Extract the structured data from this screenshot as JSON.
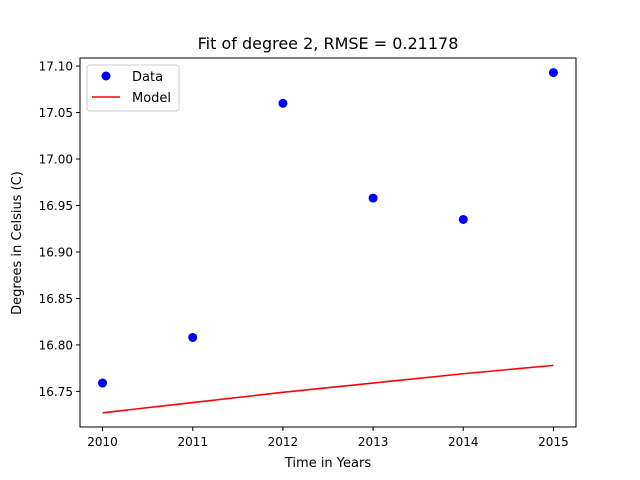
{
  "chart_data": {
    "type": "scatter",
    "title": "Fit of degree 2, RMSE = 0.21178",
    "xlabel": "Time in Years",
    "ylabel": "Degrees in Celsius (C)",
    "xlim": [
      2009.75,
      2015.25
    ],
    "ylim": [
      16.7117,
      17.1087
    ],
    "x_ticks": [
      2010,
      2011,
      2012,
      2013,
      2014,
      2015
    ],
    "x_tick_labels": [
      "2010",
      "2011",
      "2012",
      "2013",
      "2014",
      "2015"
    ],
    "y_ticks": [
      16.75,
      16.8,
      16.85,
      16.9,
      16.95,
      17.0,
      17.05,
      17.1
    ],
    "y_tick_labels": [
      "16.75",
      "16.80",
      "16.85",
      "16.90",
      "16.95",
      "17.00",
      "17.05",
      "17.10"
    ],
    "grid": false,
    "legend_position": "top-left",
    "series": [
      {
        "name": "Data",
        "kind": "scatter",
        "color": "#0000ff",
        "x": [
          2010,
          2011,
          2012,
          2013,
          2014,
          2015
        ],
        "y": [
          16.759,
          16.808,
          17.06,
          16.958,
          16.935,
          17.093
        ]
      },
      {
        "name": "Model",
        "kind": "line",
        "color": "#ff0000",
        "x": [
          2010,
          2011,
          2012,
          2013,
          2014,
          2015
        ],
        "y": [
          16.727,
          16.738,
          16.749,
          16.759,
          16.769,
          16.778
        ]
      }
    ]
  }
}
